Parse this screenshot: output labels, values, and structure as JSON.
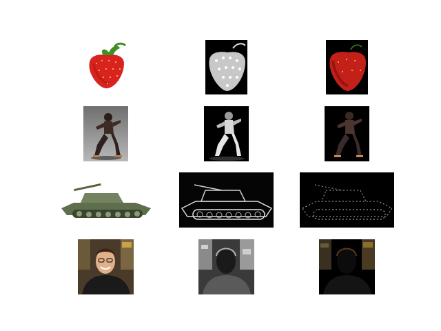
{
  "figure": {
    "background": "#ffffff",
    "rows": [
      {
        "subject": "strawberry",
        "panels": [
          {
            "kind": "original",
            "background": "#ffffff"
          },
          {
            "kind": "saliency-map",
            "background": "#000000"
          },
          {
            "kind": "masked-overlay",
            "background": "#000000"
          }
        ]
      },
      {
        "subject": "dancer",
        "panels": [
          {
            "kind": "original",
            "background": "#8a8a8a"
          },
          {
            "kind": "saliency-map",
            "background": "#000000"
          },
          {
            "kind": "masked-overlay",
            "background": "#000000"
          }
        ]
      },
      {
        "subject": "tank",
        "panels": [
          {
            "kind": "original",
            "background": "#ffffff"
          },
          {
            "kind": "saliency-map",
            "background": "#000000"
          },
          {
            "kind": "masked-overlay",
            "background": "#000000"
          }
        ]
      },
      {
        "subject": "portrait",
        "panels": [
          {
            "kind": "original",
            "background": "#4a3a2a"
          },
          {
            "kind": "saliency-map",
            "background": "#2a2a2a"
          },
          {
            "kind": "masked-overlay",
            "background": "#000000"
          }
        ]
      }
    ]
  }
}
